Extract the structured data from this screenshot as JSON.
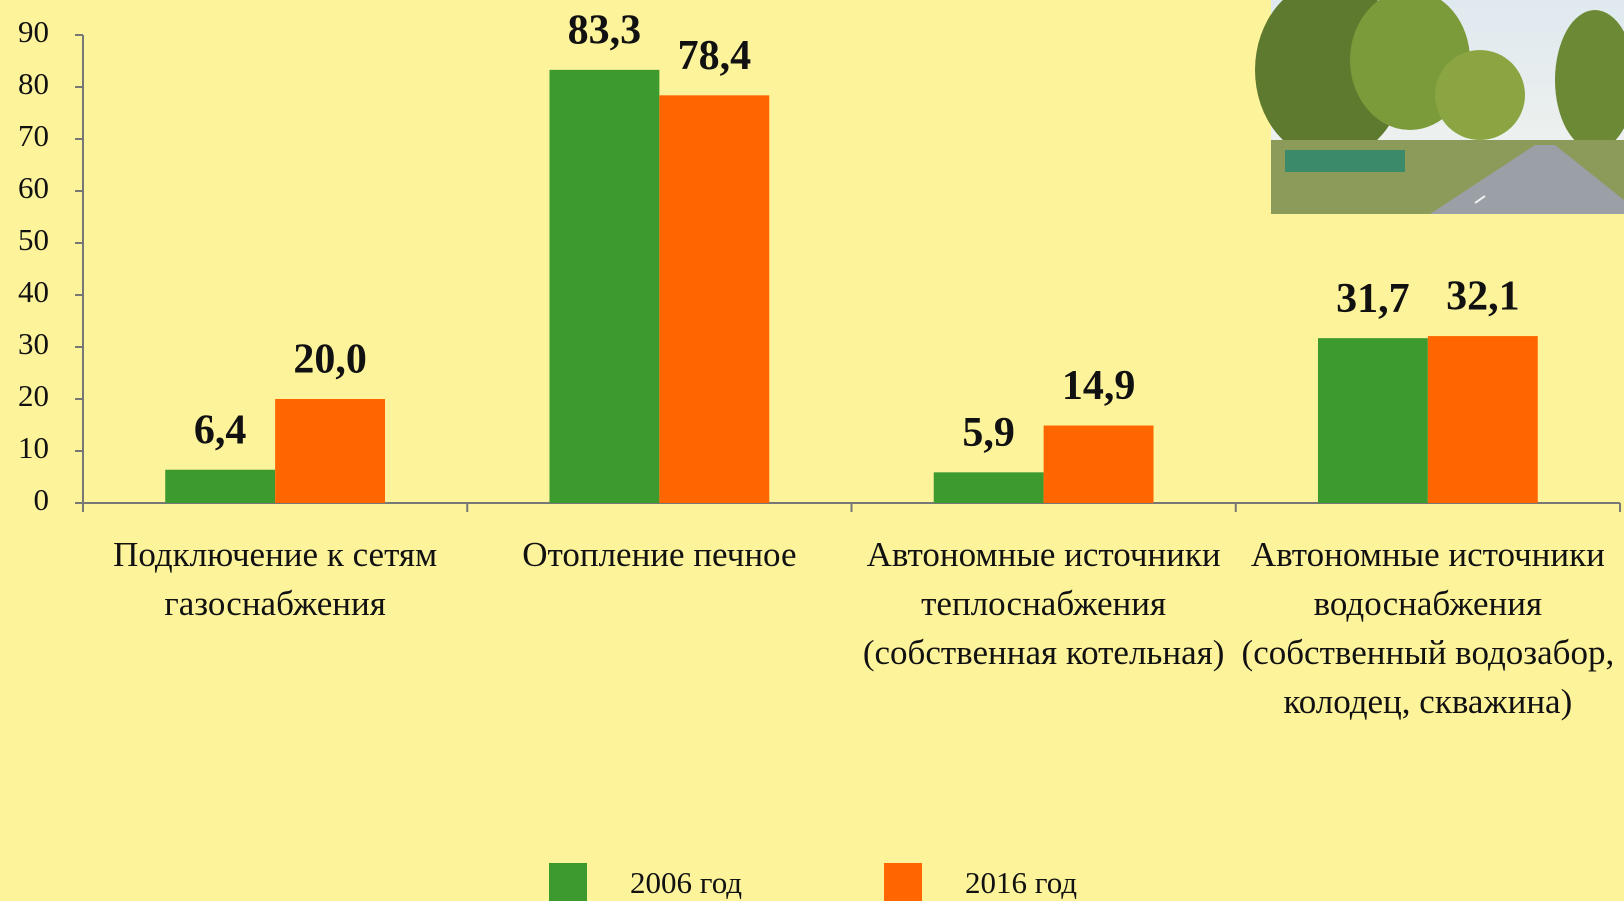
{
  "chart_data": {
    "type": "bar",
    "categories": [
      "Подключение к сетям газоснабжения",
      "Отопление печное",
      "Автономные источники теплоснабжения (собственная котельная)",
      "Автономные источники водоснабжения (собственный водозабор, колодец, скважина)"
    ],
    "series": [
      {
        "name": "2006 год",
        "color": "#3d9a2f",
        "values": [
          6.4,
          83.3,
          5.9,
          31.7
        ],
        "value_labels": [
          "6,4",
          "83,3",
          "5,9",
          "31,7"
        ]
      },
      {
        "name": "2016 год",
        "color": "#ff6600",
        "values": [
          20.0,
          78.4,
          14.9,
          32.1
        ],
        "value_labels": [
          "20,0",
          "78,4",
          "14,9",
          "32,1"
        ]
      }
    ],
    "ylim": [
      0,
      90
    ],
    "yticks": [
      0,
      10,
      20,
      30,
      40,
      50,
      60,
      70,
      80,
      90
    ],
    "grid": false
  }
}
